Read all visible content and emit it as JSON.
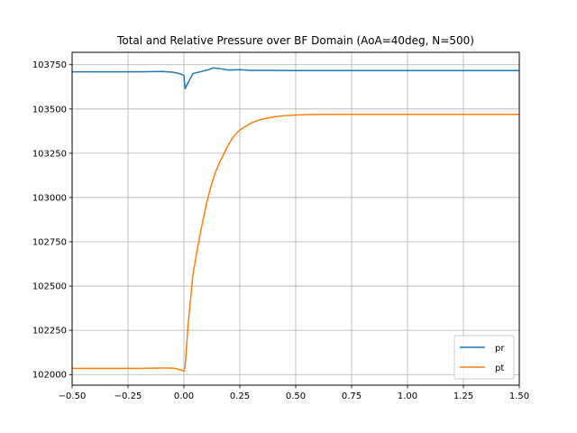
{
  "chart_data": {
    "type": "line",
    "title": "Total and Relative Pressure over BF Domain (AoA=40deg, N=500)",
    "xlabel": "",
    "ylabel": "",
    "xlim": [
      -0.5,
      1.5
    ],
    "ylim": [
      101940,
      103820
    ],
    "grid": true,
    "legend_position": "lower-right",
    "x_ticks": [
      -0.5,
      -0.25,
      0.0,
      0.25,
      0.5,
      0.75,
      1.0,
      1.25,
      1.5
    ],
    "x_tick_labels": [
      "−0.50",
      "−0.25",
      "0.00",
      "0.25",
      "0.50",
      "0.75",
      "1.00",
      "1.25",
      "1.50"
    ],
    "y_ticks": [
      102000,
      102250,
      102500,
      102750,
      103000,
      103250,
      103500,
      103750
    ],
    "y_tick_labels": [
      "102000",
      "102250",
      "102500",
      "102750",
      "103000",
      "103250",
      "103500",
      "103750"
    ],
    "series": [
      {
        "name": "pr",
        "color": "#1f77b4",
        "x": [
          -0.5,
          -0.4,
          -0.3,
          -0.2,
          -0.1,
          -0.05,
          -0.02,
          0.0,
          0.005,
          0.04,
          0.08,
          0.11,
          0.13,
          0.16,
          0.2,
          0.25,
          0.3,
          0.4,
          0.5,
          0.75,
          1.0,
          1.25,
          1.5
        ],
        "values": [
          103710,
          103710,
          103710,
          103710,
          103712,
          103708,
          103700,
          103690,
          103615,
          103700,
          103712,
          103722,
          103732,
          103728,
          103720,
          103722,
          103718,
          103718,
          103717,
          103717,
          103717,
          103717,
          103717
        ]
      },
      {
        "name": "pt",
        "color": "#ff7f0e",
        "x": [
          -0.5,
          -0.4,
          -0.3,
          -0.2,
          -0.1,
          -0.06,
          -0.04,
          -0.02,
          0.0,
          0.005,
          0.02,
          0.04,
          0.06,
          0.08,
          0.1,
          0.12,
          0.14,
          0.16,
          0.18,
          0.2,
          0.22,
          0.24,
          0.26,
          0.28,
          0.3,
          0.33,
          0.36,
          0.4,
          0.45,
          0.5,
          0.55,
          0.6,
          0.7,
          0.8,
          1.0,
          1.25,
          1.5
        ],
        "values": [
          102035,
          102035,
          102035,
          102035,
          102037,
          102037,
          102035,
          102028,
          102020,
          102040,
          102300,
          102560,
          102710,
          102840,
          102960,
          103060,
          103140,
          103200,
          103250,
          103300,
          103340,
          103370,
          103390,
          103405,
          103420,
          103435,
          103445,
          103455,
          103462,
          103466,
          103468,
          103469,
          103470,
          103470,
          103470,
          103470,
          103470
        ]
      }
    ]
  }
}
